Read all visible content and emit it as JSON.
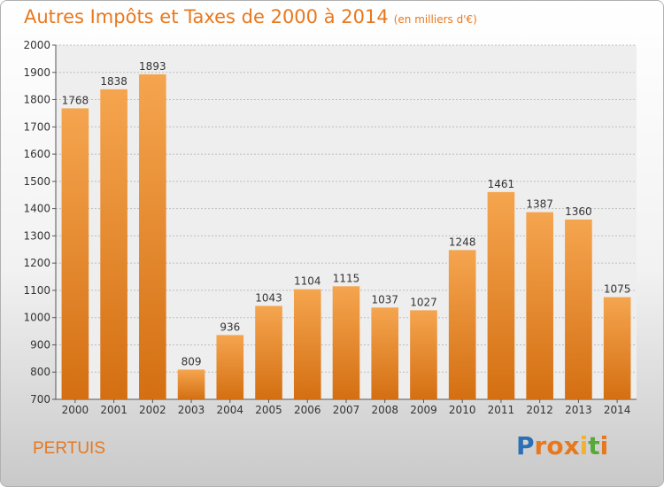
{
  "header": {
    "title": "Autres Impôts et Taxes de 2000 à 2014",
    "subtitle": "(en milliers d'€)"
  },
  "footer": {
    "location": "PERTUIS"
  },
  "logo": {
    "text": "Proxiti",
    "letters": [
      "P",
      "r",
      "o",
      "x",
      "i",
      "t",
      "i"
    ],
    "colors": [
      "#2b6fb5",
      "#e8781e",
      "#e8781e",
      "#e8781e",
      "#f2b134",
      "#58a83a",
      "#e8781e"
    ]
  },
  "colors": {
    "bar_light": "#f5a54f",
    "bar_dark": "#d46f12",
    "accent": "#e8781e"
  },
  "chart_data": {
    "type": "bar",
    "title": "Autres Impôts et Taxes de 2000 à 2014",
    "subtitle": "(en milliers d'€)",
    "xlabel": "",
    "ylabel": "",
    "categories": [
      "2000",
      "2001",
      "2002",
      "2003",
      "2004",
      "2005",
      "2006",
      "2007",
      "2008",
      "2009",
      "2010",
      "2011",
      "2012",
      "2013",
      "2014"
    ],
    "values": [
      1768,
      1838,
      1893,
      809,
      936,
      1043,
      1104,
      1115,
      1037,
      1027,
      1248,
      1461,
      1387,
      1360,
      1075
    ],
    "ylim": [
      700,
      2000
    ],
    "yticks": [
      700,
      800,
      900,
      1000,
      1100,
      1200,
      1300,
      1400,
      1500,
      1600,
      1700,
      1800,
      1900,
      2000
    ],
    "grid": true,
    "legend": "none"
  }
}
